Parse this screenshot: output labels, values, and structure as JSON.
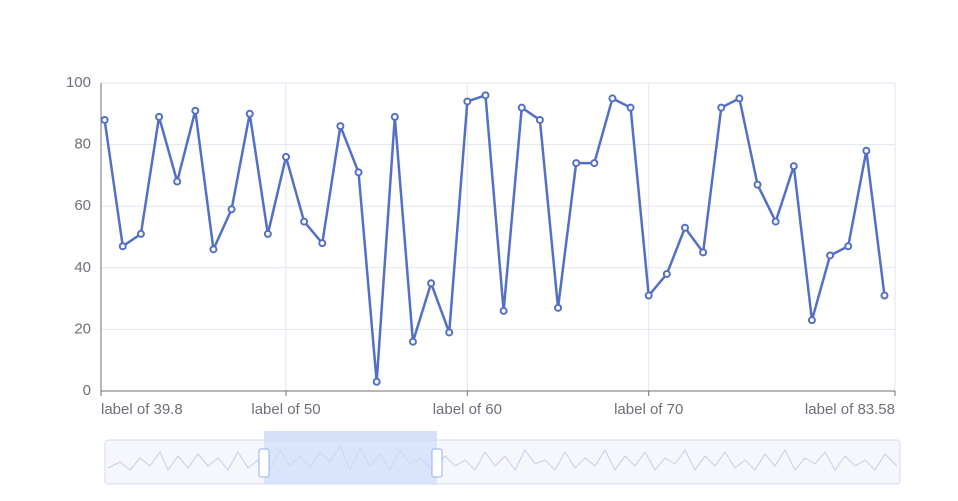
{
  "chart_data": {
    "type": "line",
    "x": [
      40,
      41,
      42,
      43,
      44,
      45,
      46,
      47,
      48,
      49,
      50,
      51,
      52,
      53,
      54,
      55,
      56,
      57,
      58,
      59,
      60,
      61,
      62,
      63,
      64,
      65,
      66,
      67,
      68,
      69,
      70,
      71,
      72,
      73,
      74,
      75,
      76,
      77,
      78,
      79,
      80,
      81,
      82,
      83
    ],
    "values": [
      88,
      47,
      51,
      89,
      68,
      91,
      46,
      59,
      90,
      51,
      76,
      55,
      48,
      86,
      71,
      3,
      89,
      16,
      35,
      19,
      94,
      96,
      26,
      92,
      88,
      27,
      74,
      74,
      95,
      92,
      31,
      38,
      53,
      45,
      92,
      95,
      67,
      55,
      73,
      23,
      44,
      47,
      78,
      31
    ],
    "color": "#5470c6",
    "xlim": [
      39.8,
      83.58
    ],
    "xticks": [
      {
        "value": 39.8,
        "label": "label of 39.8"
      },
      {
        "value": 50,
        "label": "label of 50"
      },
      {
        "value": 60,
        "label": "label of 60"
      },
      {
        "value": 70,
        "label": "label of 70"
      },
      {
        "value": 83.58,
        "label": "label of 83.58"
      }
    ],
    "ylim": [
      0,
      100
    ],
    "yticks": [
      0,
      20,
      40,
      60,
      80,
      100
    ],
    "grid": true
  }
}
